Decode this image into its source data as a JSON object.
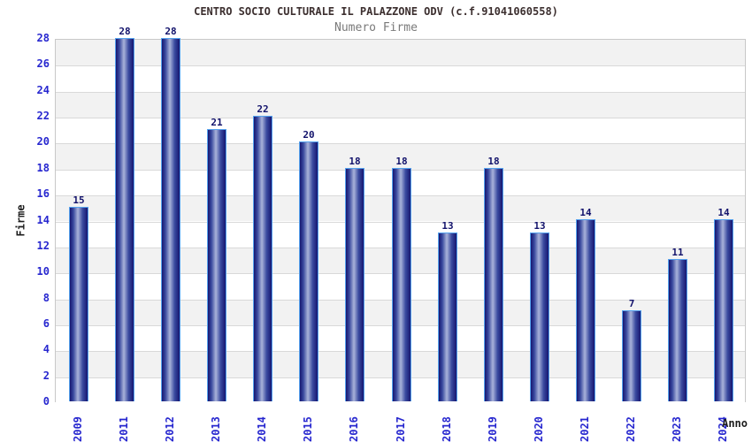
{
  "chart_data": {
    "type": "bar",
    "title": "CENTRO SOCIO CULTURALE IL PALAZZONE ODV (c.f.91041060558)",
    "subtitle": "Numero Firme",
    "xlabel": "Anno",
    "ylabel": "Firme",
    "categories": [
      "2009",
      "2011",
      "2012",
      "2013",
      "2014",
      "2015",
      "2016",
      "2017",
      "2018",
      "2019",
      "2020",
      "2021",
      "2022",
      "2023",
      "2024"
    ],
    "values": [
      15,
      28,
      28,
      21,
      22,
      20,
      18,
      18,
      13,
      18,
      13,
      14,
      7,
      11,
      14
    ],
    "ylim": [
      0,
      28
    ],
    "ytick_step": 2,
    "grid": true,
    "legend": "none",
    "band_colors": [
      "#f2f2f2",
      "#ffffff"
    ],
    "colors": {
      "title": "#3c2f2f",
      "subtitle": "#7a7a7a",
      "tick_label": "#2727cf",
      "value_label": "#12126b",
      "axis_title": "#1c1c1c",
      "grid_line": "#d9d9d9",
      "plot_border": "#c8c8c8",
      "bar_border": "#55a2ee",
      "bar_dark": "#161670",
      "bar_mid": "#3a4a9f",
      "bar_light": "#a9b3da"
    }
  }
}
